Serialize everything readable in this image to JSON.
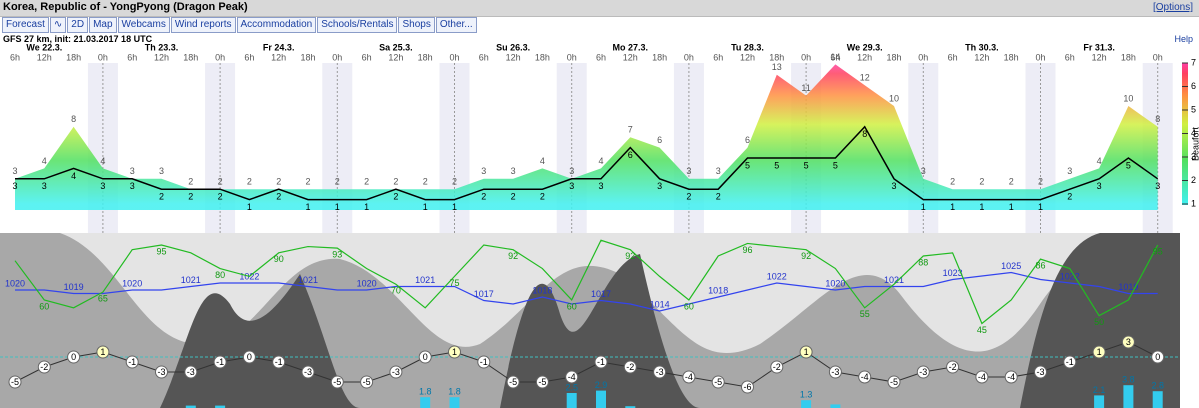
{
  "header": {
    "title": "Korea, Republic of - YongPyong (Dragon Peak)",
    "options": "[Options]"
  },
  "menu": [
    "Forecast",
    "2D",
    "Map",
    "Webcams",
    "Wind reports",
    "Accommodation",
    "Schools/Rentals",
    "Shops",
    "Other..."
  ],
  "model": {
    "info": "GFS 27 km, init: 21.03.2017 18 UTC",
    "help": "Help"
  },
  "days": [
    "We 22.3.",
    "Th 23.3.",
    "Fr 24.3.",
    "Sa 25.3.",
    "Su 26.3.",
    "Mo 27.3.",
    "Tu 28.3.",
    "We 29.3.",
    "Th 30.3.",
    "Fr 31.3."
  ],
  "hours": [
    "6h",
    "12h",
    "18h",
    "0h",
    "6h",
    "12h",
    "18h",
    "0h",
    "6h",
    "12h",
    "18h",
    "0h",
    "6h",
    "12h",
    "18h",
    "0h",
    "6h",
    "12h",
    "18h",
    "0h",
    "6h",
    "12h",
    "18h",
    "0h",
    "6h",
    "12h",
    "18h",
    "0h",
    "6h",
    "12h",
    "18h",
    "0h",
    "6h",
    "12h",
    "18h",
    "0h",
    "6h",
    "12h",
    "18h",
    "0h"
  ],
  "wind": {
    "speed": [
      3,
      3,
      4,
      3,
      3,
      2,
      2,
      2,
      1,
      2,
      1,
      1,
      1,
      2,
      1,
      1,
      2,
      2,
      2,
      3,
      3,
      6,
      3,
      2,
      2,
      5,
      5,
      5,
      5,
      8,
      3,
      1,
      1,
      1,
      1,
      1,
      2,
      3,
      5,
      3
    ],
    "gust": [
      3,
      4,
      8,
      4,
      3,
      3,
      2,
      2,
      2,
      2,
      2,
      2,
      2,
      2,
      2,
      2,
      3,
      3,
      4,
      3,
      4,
      7,
      6,
      3,
      3,
      6,
      13,
      11,
      14,
      12,
      10,
      3,
      2,
      2,
      2,
      2,
      3,
      4,
      10,
      8
    ],
    "beaufort_label": "Beaufort",
    "beaufort_ticks": [
      1,
      2,
      3,
      4,
      5,
      6,
      7
    ]
  },
  "pressure": [
    1020,
    1020,
    1019,
    1019,
    1020,
    1020,
    1021,
    1022,
    1022,
    1022,
    1021,
    1020,
    1020,
    1021,
    1021,
    1021,
    1017,
    1016,
    1018,
    1016,
    1017,
    1016,
    1014,
    1016,
    1018,
    1020,
    1022,
    1021,
    1020,
    1021,
    1021,
    1021,
    1023,
    1024,
    1025,
    1023,
    1022,
    1021,
    1019,
    1019
  ],
  "humidity": [
    85,
    60,
    55,
    65,
    92,
    95,
    90,
    80,
    75,
    90,
    94,
    93,
    80,
    70,
    55,
    75,
    95,
    92,
    80,
    60,
    98,
    92,
    75,
    60,
    88,
    96,
    94,
    92,
    80,
    55,
    70,
    88,
    90,
    45,
    60,
    86,
    80,
    50,
    60,
    95
  ],
  "temperature": [
    -5,
    -2,
    0,
    1,
    -1,
    -3,
    -3,
    -1,
    0,
    -1,
    -3,
    -5,
    -5,
    -3,
    0,
    1,
    -1,
    -5,
    -5,
    -4,
    -1,
    -2,
    -3,
    -4,
    -5,
    -6,
    -2,
    1,
    -3,
    -4,
    -5,
    -3,
    -2,
    -4,
    -4,
    -3,
    -1,
    1,
    3,
    0
  ],
  "precipitation": [
    0,
    0,
    0,
    0,
    0,
    0,
    0.4,
    0.4,
    0,
    0,
    0,
    0,
    0,
    0,
    1.8,
    1.8,
    0,
    0,
    0,
    2.5,
    2.9,
    0.3,
    0,
    0,
    0,
    0,
    0,
    1.3,
    0.6,
    0,
    0,
    0,
    0,
    0,
    0,
    0,
    0,
    2.1,
    3.8,
    2.8
  ]
}
